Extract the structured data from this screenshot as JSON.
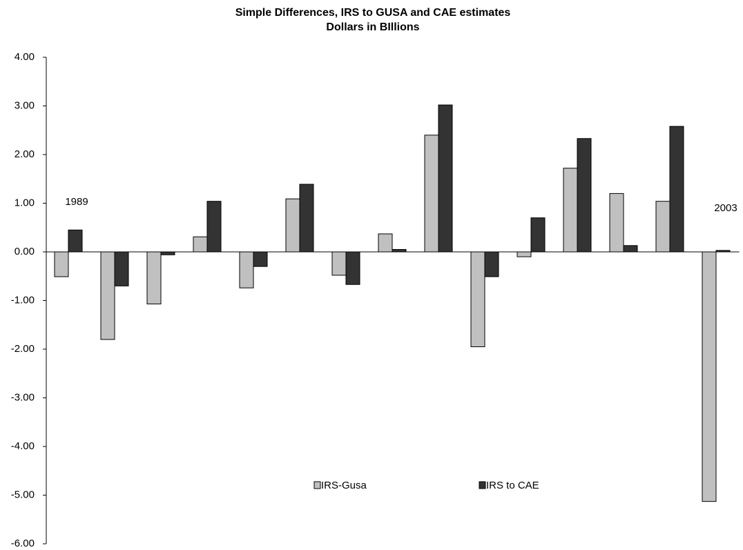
{
  "chart_data": {
    "type": "bar",
    "title": "Simple Differences, IRS to GUSA and CAE estimates",
    "subtitle": "Dollars in BIllions",
    "categories": [
      null,
      null,
      null,
      null,
      null,
      null,
      null,
      null,
      null,
      null,
      null,
      null,
      null,
      null,
      null
    ],
    "annotations": [
      "1989",
      "2003"
    ],
    "series": [
      {
        "name": "IRS-Gusa",
        "color": "#c0c0c0",
        "values": [
          -0.51,
          -1.8,
          -1.07,
          0.31,
          -0.74,
          1.09,
          -0.48,
          0.37,
          2.4,
          -1.95,
          -0.1,
          1.72,
          1.2,
          1.04,
          -5.13
        ]
      },
      {
        "name": "IRS to CAE",
        "color": "#333333",
        "values": [
          0.45,
          -0.7,
          -0.06,
          1.04,
          -0.3,
          1.39,
          -0.67,
          0.05,
          3.02,
          -0.51,
          0.7,
          2.33,
          0.13,
          2.58,
          0.03
        ]
      }
    ],
    "ylim": [
      -6,
      4
    ],
    "yticks": [
      {
        "value": 4,
        "label": "4.00"
      },
      {
        "value": 3,
        "label": "3.00"
      },
      {
        "value": 2,
        "label": "2.00"
      },
      {
        "value": 1,
        "label": "1.00"
      },
      {
        "value": 0,
        "label": "0.00"
      },
      {
        "value": -1,
        "label": "-1.00"
      },
      {
        "value": -2,
        "label": "-2.00"
      },
      {
        "value": -3,
        "label": "-3.00"
      },
      {
        "value": -4,
        "label": "-4.00"
      },
      {
        "value": -5,
        "label": "-5.00"
      },
      {
        "value": -6,
        "label": "-6.00"
      }
    ],
    "grid": false,
    "legend": "bottom"
  }
}
